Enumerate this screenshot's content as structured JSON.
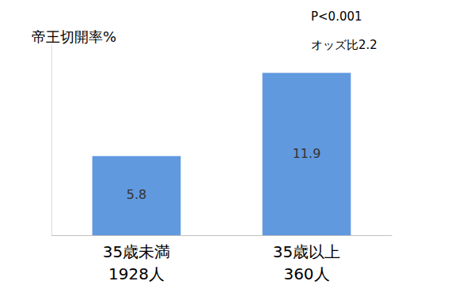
{
  "chart_data": {
    "type": "bar",
    "title": "帝王切開率%",
    "categories": [
      "35歳未満\n1928人",
      "35歳以上\n360人"
    ],
    "values": [
      5.8,
      11.9
    ],
    "color": "#6199df",
    "ylim": [
      0,
      14
    ],
    "annotations": [
      "P<0.001",
      "オッズ比2.2"
    ],
    "data_labels": true,
    "tick_labels": "x",
    "grid": false
  }
}
